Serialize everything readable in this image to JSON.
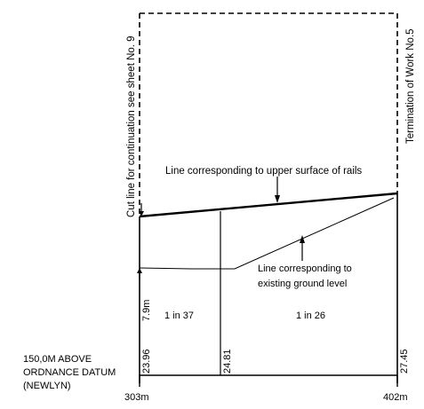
{
  "side_labels": {
    "left": "Cut line for continuation see sheet No. 9",
    "right": "Termination of Work No.5"
  },
  "annotations": {
    "rails": "Line corresponding to upper surface of rails",
    "ground_line1": "Line corresponding to",
    "ground_line2": "existing ground level"
  },
  "datum": {
    "line1": "150,0M ABOVE",
    "line2": "ORDNANCE DATUM",
    "line3": "(NEWLYN)"
  },
  "clearance": "7.9m",
  "gradients": [
    "1 in 37",
    "1 in 26"
  ],
  "levels": [
    "23.96",
    "24.81",
    "27.45"
  ],
  "chainages": {
    "start": "303m",
    "end": "402m"
  },
  "colors": {
    "ink": "#000000",
    "paper": "#ffffff"
  }
}
